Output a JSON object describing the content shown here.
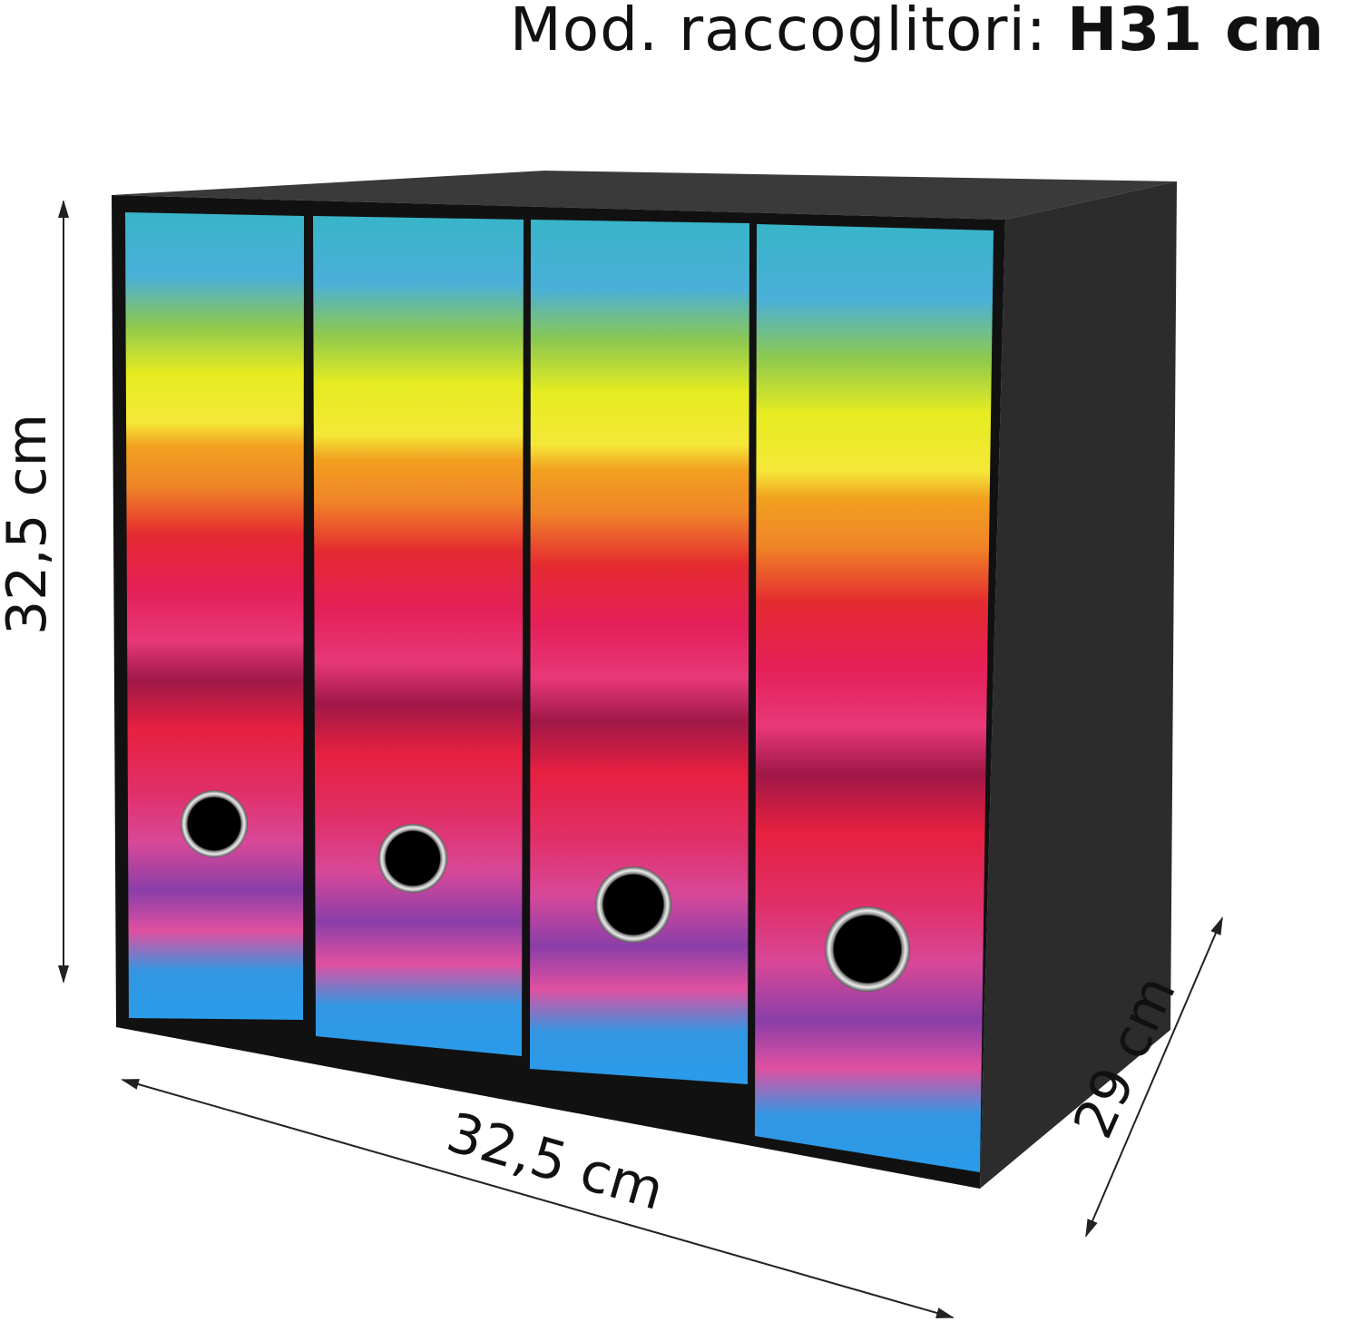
{
  "title": {
    "prefix": "Mod. raccoglitori:",
    "value": "H31 cm"
  },
  "dimensions": {
    "height": "32,5 cm",
    "width": "32,5 cm",
    "depth": "29 cm"
  },
  "product": {
    "binder_count": 4,
    "box_color": "#2a2a2a",
    "pattern": "rainbow stripes"
  }
}
